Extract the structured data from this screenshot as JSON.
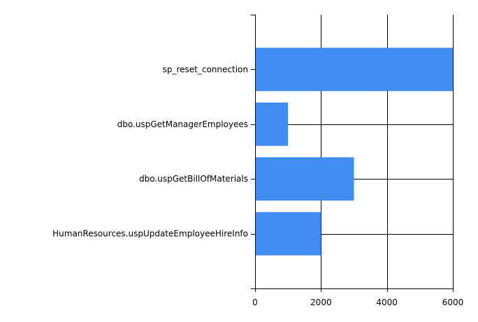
{
  "chart_data": {
    "type": "bar",
    "orientation": "horizontal",
    "title": "",
    "xlabel": "",
    "ylabel": "",
    "categories": [
      "sp_reset_connection",
      "dbo.uspGetManagerEmployees",
      "dbo.uspGetBillOfMaterials",
      "HumanResources.uspUpdateEmployeeHireInfo"
    ],
    "values": [
      6000,
      1000,
      3000,
      2000
    ],
    "xlim": [
      0,
      6000
    ],
    "xticks": [
      0,
      2000,
      4000,
      6000
    ],
    "grid": true,
    "legend": "none",
    "bar_color": "#418CF0"
  }
}
